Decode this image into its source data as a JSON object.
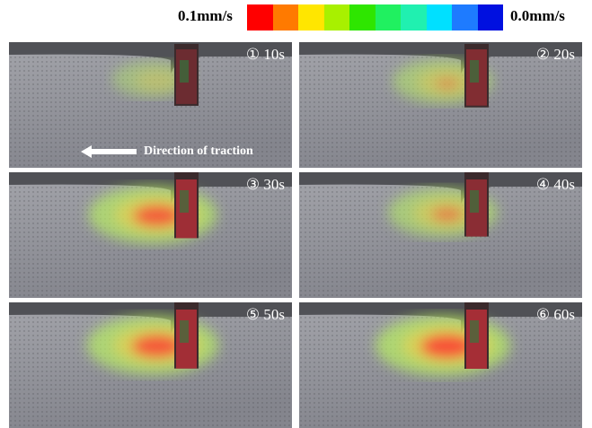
{
  "legend": {
    "max_label": "0.1mm/s",
    "min_label": "0.0mm/s"
  },
  "panels": [
    {
      "label": "① 10s"
    },
    {
      "label": "② 20s"
    },
    {
      "label": "③ 30s"
    },
    {
      "label": "④ 40s"
    },
    {
      "label": "⑤ 50s"
    },
    {
      "label": "⑥ 60s"
    }
  ],
  "annotation": "Direction of traction"
}
